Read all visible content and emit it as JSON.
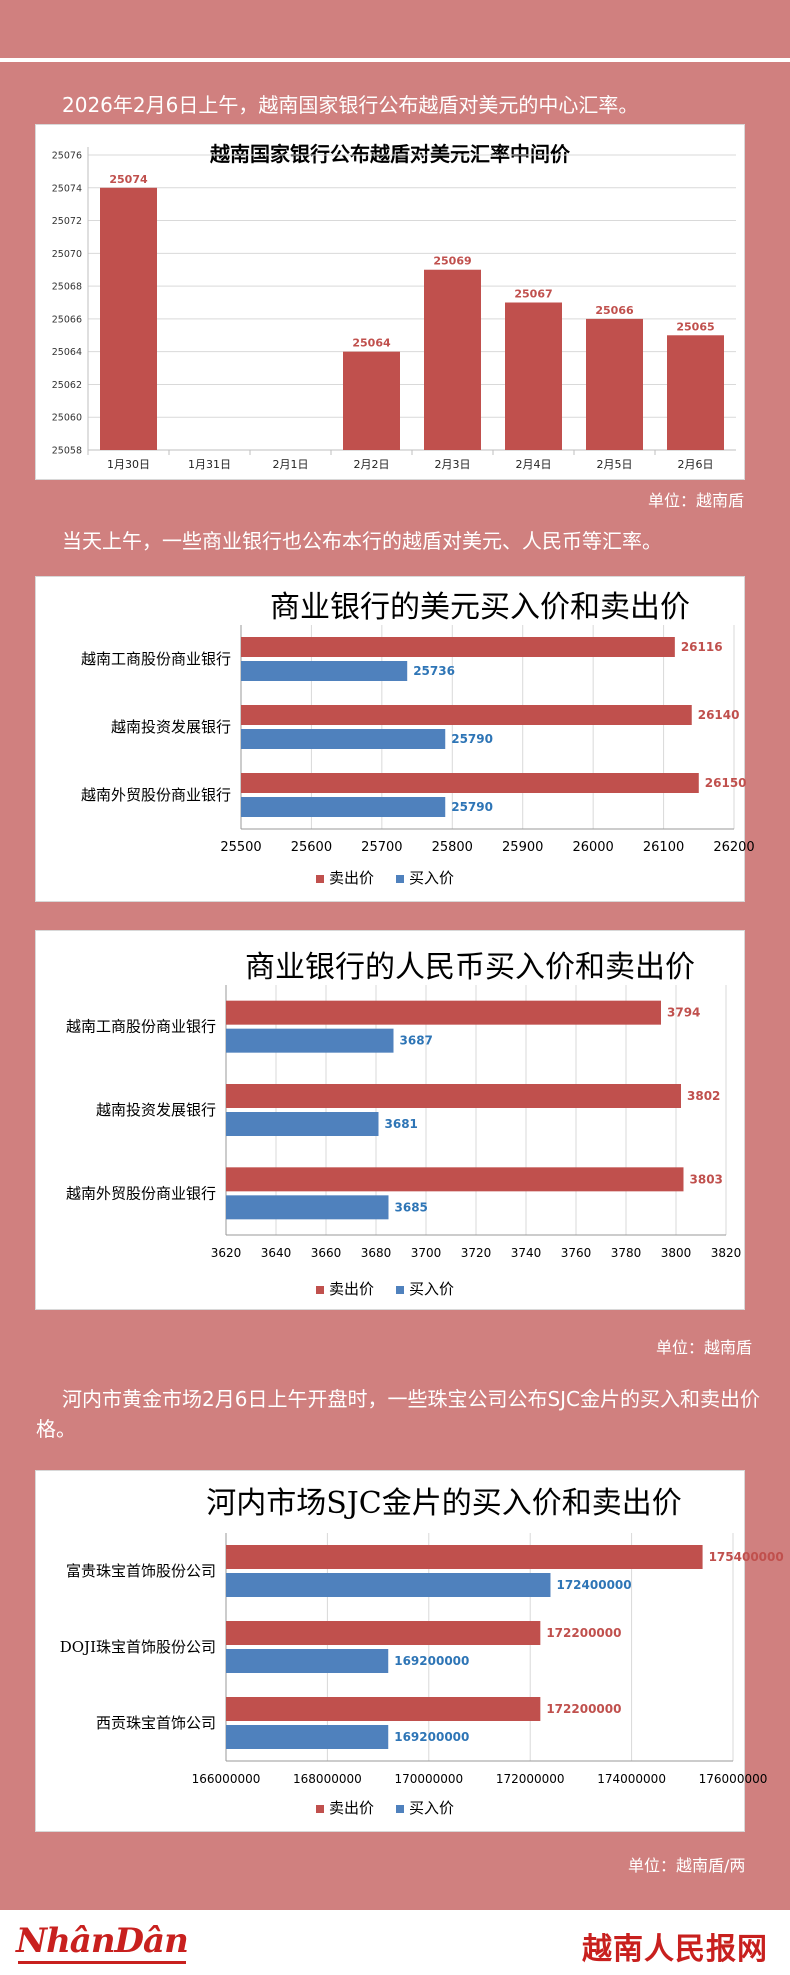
{
  "intro_text": "2026年2月6日上午，越南国家银行公布越盾对美元的中心汇率。",
  "para2_text": "当天上午，一些商业银行也公布本行的越盾对美元、人民币等汇率。",
  "para3_text": "河内市黄金市场2月6日上午开盘时，一些珠宝公司公布SJC金片的买入和卖出价格。",
  "unit1": "单位：越南盾",
  "unit2": "单位：越南盾",
  "unit3": "单位：越南盾/两",
  "footer": {
    "left_logo": "NhânDân",
    "right_logo": "越南人民报网"
  },
  "colors": {
    "sell": "#c0504d",
    "buy": "#4f81bd",
    "background": "#d0807f",
    "sell_label": "#c0504d",
    "buy_label": "#2e75b6"
  },
  "chart_data": [
    {
      "type": "bar",
      "title": "越南国家银行公布越盾对美元汇率中间价",
      "categories": [
        "1月30日",
        "1月31日",
        "2月1日",
        "2月2日",
        "2月3日",
        "2月4日",
        "2月5日",
        "2月6日"
      ],
      "values": [
        25074,
        null,
        null,
        25064,
        25069,
        25067,
        25066,
        25065
      ],
      "ylim": [
        25058,
        25076
      ],
      "yticks": [
        25058,
        25060,
        25062,
        25064,
        25066,
        25068,
        25070,
        25072,
        25074,
        25076
      ],
      "grid": true
    },
    {
      "type": "bar",
      "orientation": "horizontal",
      "title": "商业银行的美元买入价和卖出价",
      "categories": [
        "越南工商股份商业银行",
        "越南投资发展银行",
        "越南外贸股份商业银行"
      ],
      "series": [
        {
          "name": "卖出价",
          "values": [
            26116,
            26140,
            26150
          ]
        },
        {
          "name": "买入价",
          "values": [
            25736,
            25790,
            25790
          ]
        }
      ],
      "xlim": [
        25500,
        26200
      ],
      "xticks": [
        25500,
        25600,
        25700,
        25800,
        25900,
        26000,
        26100,
        26200
      ],
      "legend": "bottom",
      "grid": true
    },
    {
      "type": "bar",
      "orientation": "horizontal",
      "title": "商业银行的人民币买入价和卖出价",
      "categories": [
        "越南工商股份商业银行",
        "越南投资发展银行",
        "越南外贸股份商业银行"
      ],
      "series": [
        {
          "name": "卖出价",
          "values": [
            3794,
            3802,
            3803
          ]
        },
        {
          "name": "买入价",
          "values": [
            3687,
            3681,
            3685
          ]
        }
      ],
      "xlim": [
        3620,
        3820
      ],
      "xticks": [
        3620,
        3640,
        3660,
        3680,
        3700,
        3720,
        3740,
        3760,
        3780,
        3800,
        3820
      ],
      "legend": "bottom",
      "grid": true
    },
    {
      "type": "bar",
      "orientation": "horizontal",
      "title": "河内市场SJC金片的买入价和卖出价",
      "categories": [
        "富贵珠宝首饰股份公司",
        "DOJI珠宝首饰股份公司",
        "西贡珠宝首饰公司"
      ],
      "series": [
        {
          "name": "卖出价",
          "values": [
            175400000,
            172200000,
            172200000
          ]
        },
        {
          "name": "买入价",
          "values": [
            172400000,
            169200000,
            169200000
          ]
        }
      ],
      "xlim": [
        166000000,
        176000000
      ],
      "xticks": [
        166000000,
        168000000,
        170000000,
        172000000,
        174000000,
        176000000
      ],
      "legend": "bottom",
      "grid": true
    }
  ]
}
